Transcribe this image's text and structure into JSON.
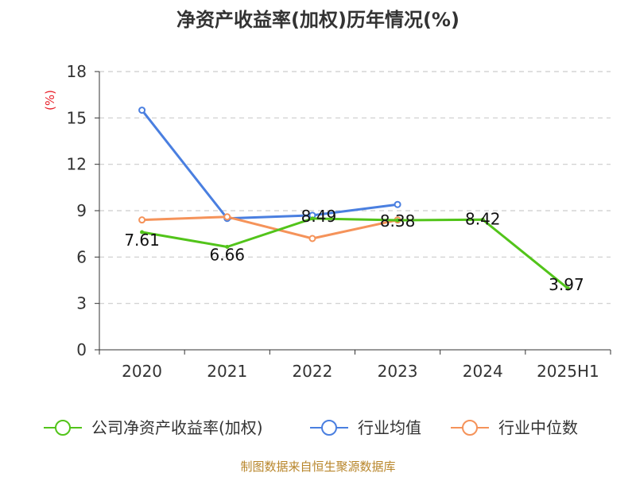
{
  "chart_data": {
    "type": "line",
    "title": "净资产收益率(加权)历年情况(%)",
    "ylabel": "(%)",
    "xlabel": "",
    "categories": [
      "2020",
      "2021",
      "2022",
      "2023",
      "2024",
      "2025H1"
    ],
    "ylim": [
      0,
      18
    ],
    "yticks": [
      0,
      3,
      6,
      9,
      12,
      15,
      18
    ],
    "grid": true,
    "legend_position": "bottom",
    "series": [
      {
        "name": "公司净资产收益率(加权)",
        "color": "#52c41a",
        "values": [
          7.61,
          6.66,
          8.49,
          8.38,
          8.42,
          3.97
        ],
        "data_labels": [
          "7.61",
          "6.66",
          "8.49",
          "8.38",
          "8.42",
          "3.97"
        ]
      },
      {
        "name": "行业均值",
        "color": "#4a7fe0",
        "values": [
          15.5,
          8.5,
          8.7,
          9.4,
          null,
          null
        ]
      },
      {
        "name": "行业中位数",
        "color": "#f5935a",
        "values": [
          8.4,
          8.6,
          7.2,
          8.4,
          null,
          null
        ]
      }
    ],
    "source": "制图数据来自恒生聚源数据库"
  }
}
